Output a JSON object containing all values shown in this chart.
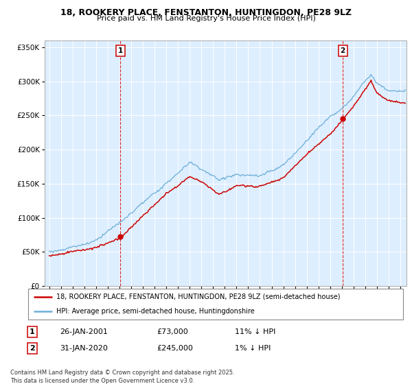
{
  "title": "18, ROOKERY PLACE, FENSTANTON, HUNTINGDON, PE28 9LZ",
  "subtitle": "Price paid vs. HM Land Registry's House Price Index (HPI)",
  "legend_line1": "18, ROOKERY PLACE, FENSTANTON, HUNTINGDON, PE28 9LZ (semi-detached house)",
  "legend_line2": "HPI: Average price, semi-detached house, Huntingdonshire",
  "footnote": "Contains HM Land Registry data © Crown copyright and database right 2025.\nThis data is licensed under the Open Government Licence v3.0.",
  "annotation1": {
    "num": "1",
    "date": "26-JAN-2001",
    "price": "£73,000",
    "hpi": "11% ↓ HPI",
    "x_year": 2001.07
  },
  "annotation2": {
    "num": "2",
    "date": "31-JAN-2020",
    "price": "£245,000",
    "hpi": "1% ↓ HPI",
    "x_year": 2020.08
  },
  "hpi_color": "#6baed6",
  "price_color": "#cc0000",
  "dashed_color": "#cc0000",
  "bg_color": "#ddeeff",
  "ylim": [
    0,
    360000
  ],
  "xlim_start": 1994.6,
  "xlim_end": 2025.5,
  "yticks": [
    0,
    50000,
    100000,
    150000,
    200000,
    250000,
    300000,
    350000
  ],
  "xticks": [
    1995,
    1996,
    1997,
    1998,
    1999,
    2000,
    2001,
    2002,
    2003,
    2004,
    2005,
    2006,
    2007,
    2008,
    2009,
    2010,
    2011,
    2012,
    2013,
    2014,
    2015,
    2016,
    2017,
    2018,
    2019,
    2020,
    2021,
    2022,
    2023,
    2024,
    2025
  ],
  "purchase1_y": 73000,
  "purchase2_y": 245000,
  "hpi_waypoints_x": [
    1995.0,
    1997.0,
    1999.0,
    2001.0,
    2003.0,
    2005.0,
    2007.0,
    2008.0,
    2009.5,
    2011.0,
    2013.0,
    2015.0,
    2017.0,
    2019.0,
    2020.0,
    2021.0,
    2022.0,
    2022.5,
    2023.0,
    2024.0,
    2025.3
  ],
  "hpi_waypoints_y": [
    50000,
    56000,
    67000,
    90000,
    120000,
    148000,
    178000,
    168000,
    152000,
    160000,
    158000,
    175000,
    210000,
    248000,
    258000,
    275000,
    300000,
    308000,
    295000,
    285000,
    285000
  ],
  "price_waypoints_x": [
    1995.0,
    1997.0,
    1999.0,
    2001.1,
    2003.0,
    2005.0,
    2007.0,
    2008.0,
    2009.5,
    2011.0,
    2013.0,
    2015.0,
    2017.0,
    2019.0,
    2020.1,
    2021.0,
    2022.0,
    2022.5,
    2023.0,
    2024.0,
    2025.3
  ],
  "price_waypoints_y": [
    44000,
    50000,
    58000,
    73000,
    105000,
    137000,
    162000,
    155000,
    135000,
    148000,
    147000,
    160000,
    195000,
    225000,
    245000,
    265000,
    290000,
    302000,
    283000,
    272000,
    268000
  ]
}
